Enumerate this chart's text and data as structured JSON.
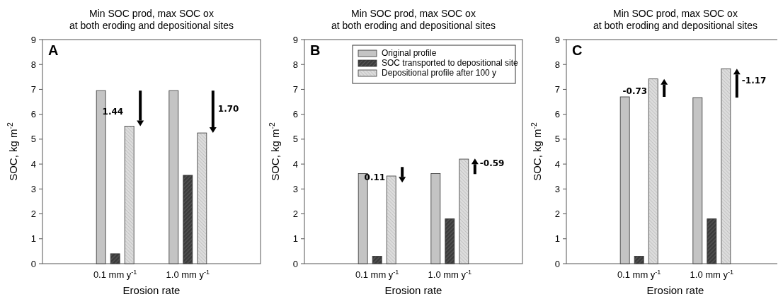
{
  "chart_data": [
    {
      "type": "bar",
      "title": "Min SOC prod, max SOC ox\nat both eroding and depositional sites",
      "xlabel": "Erosion rate",
      "ylabel": "SOC, kg m$^{-2}$",
      "categories": [
        "0.1 mm y$^{-1}$",
        "1.0 mm y$^{-1}$"
      ],
      "ylim": [
        0,
        9
      ],
      "yticks": [
        0,
        1,
        2,
        3,
        4,
        5,
        6,
        7,
        8,
        9
      ],
      "legend": false,
      "series": [
        {
          "color": "#c4c4c4",
          "values": [
            6.95,
            6.95
          ]
        },
        {
          "color": "#3c3c3c",
          "values": [
            0.4,
            3.55
          ]
        },
        {
          "color": "#dcdcdc",
          "values": [
            5.52,
            5.25
          ]
        }
      ],
      "annotations": [
        "A",
        "1.44",
        "1.70"
      ]
    },
    {
      "type": "bar",
      "title": "Min SOC prod, max SOC ox\nat both eroding and depositional sites",
      "xlabel": "Erosion rate",
      "ylabel": "SOC, kg m$^{-2}$",
      "categories": [
        "0.1 mm y$^{-1}$",
        "1.0 mm y$^{-1}$"
      ],
      "ylim": [
        0,
        9
      ],
      "yticks": [
        0,
        1,
        2,
        3,
        4,
        5,
        6,
        7,
        8,
        9
      ],
      "legend": "top right",
      "series": [
        {
          "name": "Original profile",
          "color": "#c4c4c4",
          "values": [
            3.62,
            3.62
          ]
        },
        {
          "name": "SOC transported to depositional site",
          "color": "#3c3c3c",
          "values": [
            0.3,
            1.8
          ]
        },
        {
          "name": "Depositional profile after 100 y",
          "color": "#dcdcdc",
          "values": [
            3.52,
            4.2
          ]
        }
      ],
      "annotations": [
        "B",
        "0.11",
        "-0.59"
      ]
    },
    {
      "type": "bar",
      "title": "Min SOC prod, max SOC ox\nat both eroding and depositional sites",
      "xlabel": "Erosion rate",
      "ylabel": "SOC, kg m$^{-2}$",
      "categories": [
        "0.1 mm y$^{-1}$",
        "1.0 mm y$^{-1}$"
      ],
      "ylim": [
        0,
        9
      ],
      "yticks": [
        0,
        1,
        2,
        3,
        4,
        5,
        6,
        7,
        8,
        9
      ],
      "legend": false,
      "series": [
        {
          "color": "#c4c4c4",
          "values": [
            6.7,
            6.67
          ]
        },
        {
          "color": "#3c3c3c",
          "values": [
            0.3,
            1.8
          ]
        },
        {
          "color": "#dcdcdc",
          "values": [
            7.42,
            7.83
          ]
        }
      ],
      "annotations": [
        "C",
        "-0.73",
        "-1.17"
      ]
    }
  ]
}
